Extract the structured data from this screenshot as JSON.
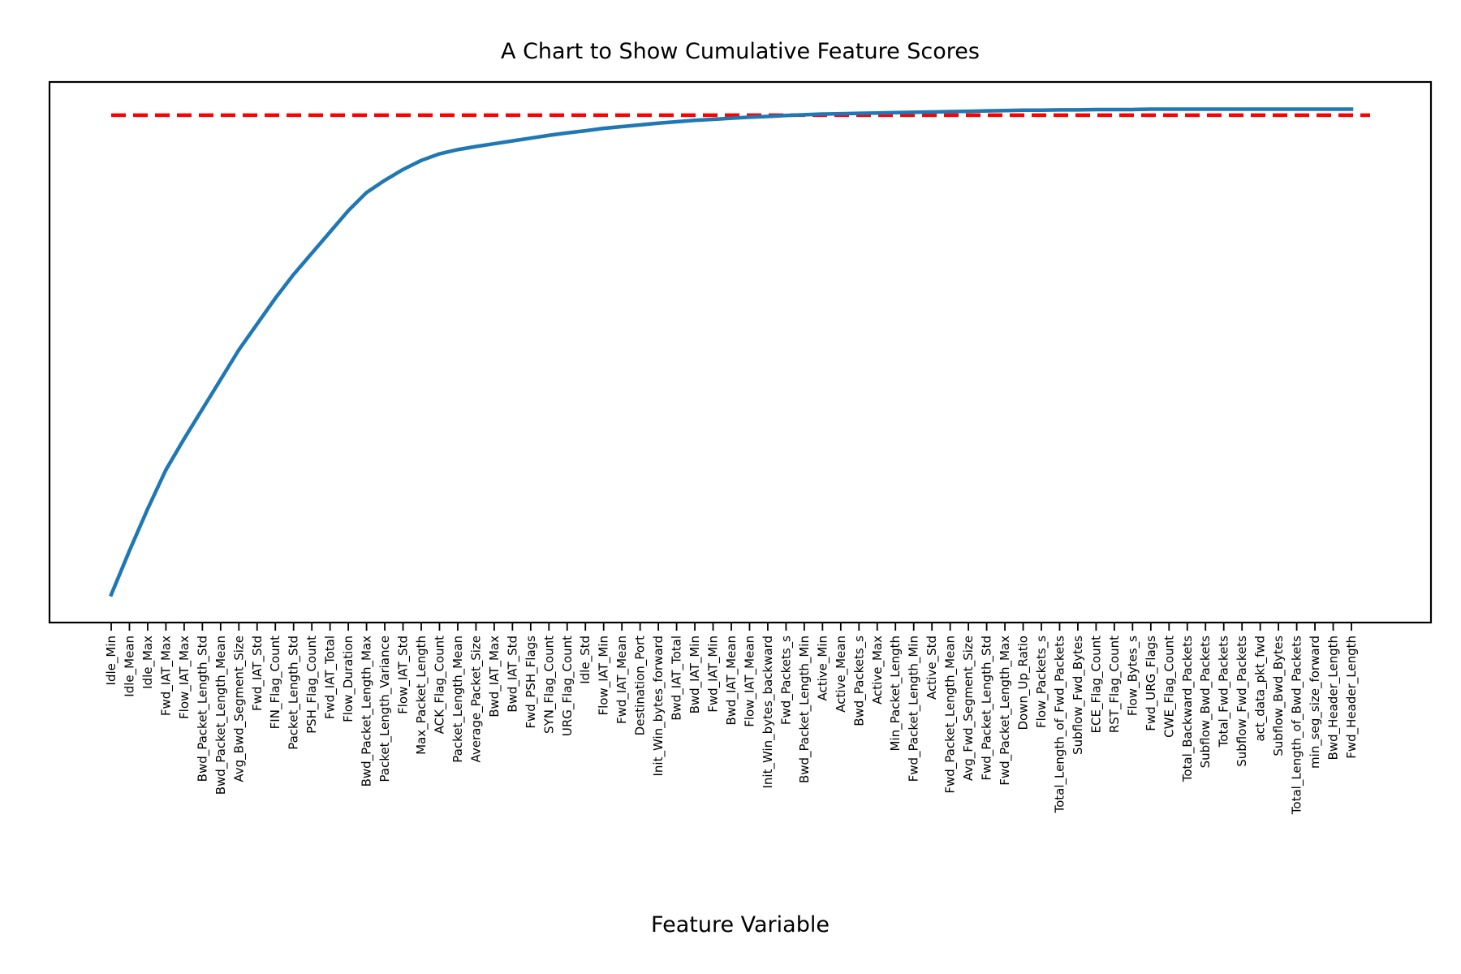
{
  "chart_data": {
    "type": "line",
    "title": "A Chart to Show Cumulative Feature Scores",
    "xlabel": "Feature Variable",
    "ylabel": "",
    "categories": [
      "Idle_Min",
      "Idle_Mean",
      "Idle_Max",
      "Fwd_IAT_Max",
      "Flow_IAT_Max",
      "Bwd_Packet_Length_Std",
      "Bwd_Packet_Length_Mean",
      "Avg_Bwd_Segment_Size",
      "Fwd_IAT_Std",
      "FIN_Flag_Count",
      "Packet_Length_Std",
      "PSH_Flag_Count",
      "Fwd_IAT_Total",
      "Flow_Duration",
      "Bwd_Packet_Length_Max",
      "Packet_Length_Variance",
      "Flow_IAT_Std",
      "Max_Packet_Length",
      "ACK_Flag_Count",
      "Packet_Length_Mean",
      "Average_Packet_Size",
      "Bwd_IAT_Max",
      "Bwd_IAT_Std",
      "Fwd_PSH_Flags",
      "SYN_Flag_Count",
      "URG_Flag_Count",
      "Idle_Std",
      "Flow_IAT_Min",
      "Fwd_IAT_Mean",
      "Destination_Port",
      "Init_Win_bytes_forward",
      "Bwd_IAT_Total",
      "Bwd_IAT_Min",
      "Fwd_IAT_Min",
      "Bwd_IAT_Mean",
      "Flow_IAT_Mean",
      "Init_Win_bytes_backward",
      "Fwd_Packets_s",
      "Bwd_Packet_Length_Min",
      "Active_Min",
      "Active_Mean",
      "Bwd_Packets_s",
      "Active_Max",
      "Min_Packet_Length",
      "Fwd_Packet_Length_Min",
      "Active_Std",
      "Fwd_Packet_Length_Mean",
      "Avg_Fwd_Segment_Size",
      "Fwd_Packet_Length_Std",
      "Fwd_Packet_Length_Max",
      "Down_Up_Ratio",
      "Flow_Packets_s",
      "Total_Length_of_Fwd_Packets",
      "Subflow_Fwd_Bytes",
      "ECE_Flag_Count",
      "RST_Flag_Count",
      "Flow_Bytes_s",
      "Fwd_URG_Flags",
      "CWE_Flag_Count",
      "Total_Backward_Packets",
      "Subflow_Bwd_Packets",
      "Total_Fwd_Packets",
      "Subflow_Fwd_Packets",
      "act_data_pkt_fwd",
      "Subflow_Bwd_Bytes",
      "Total_Length_of_Bwd_Packets",
      "min_seg_size_forward",
      "Bwd_Header_Length",
      "Fwd_Header_Length"
    ],
    "series": [
      {
        "values": [
          0.08,
          0.206,
          0.326,
          0.438,
          0.527,
          0.612,
          0.697,
          0.782,
          0.856,
          0.93,
          0.998,
          1.059,
          1.12,
          1.181,
          1.233,
          1.268,
          1.299,
          1.325,
          1.344,
          1.356,
          1.365,
          1.373,
          1.381,
          1.389,
          1.397,
          1.404,
          1.41,
          1.417,
          1.422,
          1.427,
          1.432,
          1.436,
          1.44,
          1.443,
          1.446,
          1.449,
          1.451,
          1.454,
          1.456,
          1.458,
          1.459,
          1.46,
          1.461,
          1.462,
          1.463,
          1.464,
          1.465,
          1.466,
          1.467,
          1.468,
          1.469,
          1.469,
          1.47,
          1.47,
          1.471,
          1.471,
          1.471,
          1.472,
          1.472,
          1.472,
          1.472,
          1.472,
          1.472,
          1.472,
          1.472,
          1.472,
          1.472,
          1.472,
          1.472
        ],
        "color": "#1f77b4"
      }
    ],
    "threshold": {
      "value": 1.455,
      "color": "#ff0000",
      "style": "dashed"
    },
    "ylim": [
      0,
      1.55
    ],
    "grid": false,
    "y_ticks_shown": false
  }
}
